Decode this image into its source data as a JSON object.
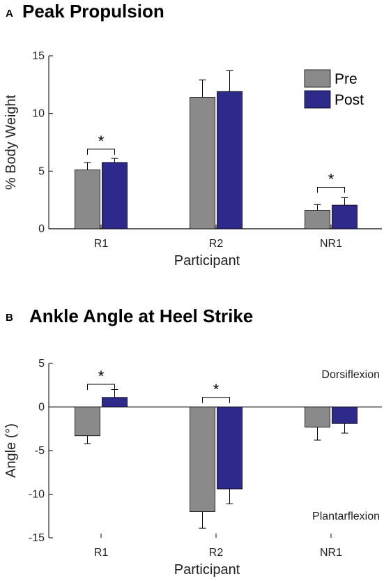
{
  "colors": {
    "pre": "#8a8a8a",
    "post": "#2e2a8c",
    "axis": "#000000"
  },
  "chart_data": [
    {
      "type": "bar",
      "panel_letter": "A",
      "title": "Peak Propulsion",
      "xlabel": "Participant",
      "ylabel": "% Body Weight",
      "ylim": [
        0,
        15
      ],
      "yticks": [
        0,
        5,
        10,
        15
      ],
      "categories": [
        "R1",
        "R2",
        "NR1"
      ],
      "series": [
        {
          "name": "Pre",
          "values": [
            5.1,
            11.4,
            1.6
          ],
          "errors": [
            0.65,
            1.5,
            0.5
          ]
        },
        {
          "name": "Post",
          "values": [
            5.75,
            11.9,
            2.05
          ],
          "errors": [
            0.35,
            1.8,
            0.65
          ]
        }
      ],
      "legend": {
        "position": "top-right",
        "entries": [
          "Pre",
          "Post"
        ]
      },
      "significance": [
        {
          "category": "R1",
          "label": "*",
          "y": 6.9
        },
        {
          "category": "NR1",
          "label": "*",
          "y": 3.6
        }
      ],
      "annotations": []
    },
    {
      "type": "bar",
      "panel_letter": "B",
      "title": "Ankle Angle at Heel Strike",
      "xlabel": "Participant",
      "ylabel": "Angle (°)",
      "ylim": [
        -15,
        5
      ],
      "yticks": [
        5,
        0,
        -5,
        -10,
        -15
      ],
      "categories": [
        "R1",
        "R2",
        "NR1"
      ],
      "series": [
        {
          "name": "Pre",
          "values": [
            -3.3,
            -12.0,
            -2.3
          ],
          "errors": [
            0.9,
            1.9,
            1.5
          ]
        },
        {
          "name": "Post",
          "values": [
            1.1,
            -9.4,
            -1.9
          ],
          "errors": [
            0.9,
            1.7,
            1.1
          ]
        }
      ],
      "significance": [
        {
          "category": "R1",
          "label": "*",
          "y": 2.6
        },
        {
          "category": "R2",
          "label": "*",
          "y": 1.1
        }
      ],
      "annotations": [
        {
          "text": "Dorsiflexion",
          "anchor": "upper-right"
        },
        {
          "text": "Plantarflexion",
          "anchor": "lower-right"
        }
      ]
    }
  ]
}
